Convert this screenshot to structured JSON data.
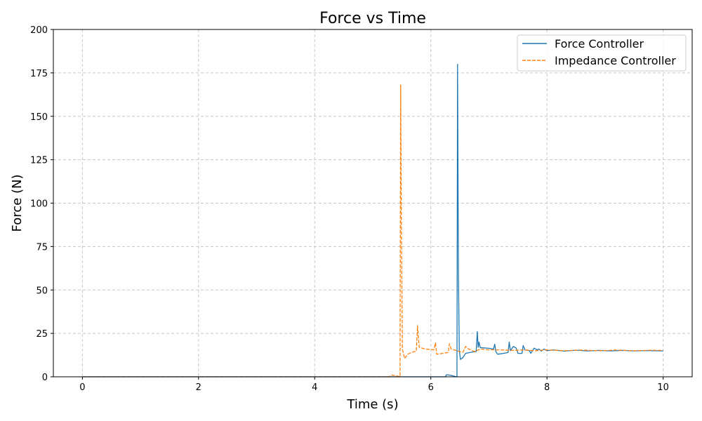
{
  "chart_data": {
    "type": "line",
    "title": "Force vs Time",
    "xlabel": "Time (s)",
    "ylabel": "Force (N)",
    "xlim": [
      -0.5,
      10.5
    ],
    "ylim": [
      0,
      200
    ],
    "xticks": [
      0,
      2,
      4,
      6,
      8,
      10
    ],
    "yticks": [
      0,
      25,
      50,
      75,
      100,
      125,
      150,
      175,
      200
    ],
    "grid": true,
    "legend_position": "top-right",
    "series": [
      {
        "name": "Force Controller",
        "color": "#1f77b4",
        "dash": "solid",
        "points": [
          [
            0,
            0
          ],
          [
            6.25,
            0
          ],
          [
            6.27,
            1.2
          ],
          [
            6.35,
            0.8
          ],
          [
            6.44,
            0
          ],
          [
            6.45,
            0
          ],
          [
            6.46,
            180
          ],
          [
            6.475,
            60
          ],
          [
            6.49,
            15
          ],
          [
            6.51,
            10
          ],
          [
            6.55,
            11
          ],
          [
            6.6,
            13.5
          ],
          [
            6.7,
            14.2
          ],
          [
            6.78,
            14.5
          ],
          [
            6.8,
            26
          ],
          [
            6.815,
            17
          ],
          [
            6.83,
            20
          ],
          [
            6.85,
            16.8
          ],
          [
            7.0,
            16.4
          ],
          [
            7.08,
            16
          ],
          [
            7.1,
            18.8
          ],
          [
            7.12,
            14.5
          ],
          [
            7.15,
            13
          ],
          [
            7.25,
            13.5
          ],
          [
            7.33,
            14
          ],
          [
            7.35,
            20
          ],
          [
            7.37,
            15
          ],
          [
            7.42,
            17.5
          ],
          [
            7.47,
            16.5
          ],
          [
            7.5,
            13.5
          ],
          [
            7.57,
            13.5
          ],
          [
            7.59,
            18
          ],
          [
            7.62,
            15.5
          ],
          [
            7.7,
            15
          ],
          [
            7.72,
            13.5
          ],
          [
            7.78,
            16.5
          ],
          [
            7.83,
            15.5
          ],
          [
            7.86,
            16
          ],
          [
            7.9,
            14.8
          ],
          [
            7.95,
            16
          ],
          [
            8.0,
            15
          ],
          [
            8.1,
            15.5
          ],
          [
            8.3,
            14.8
          ],
          [
            8.5,
            15.3
          ],
          [
            8.7,
            14.9
          ],
          [
            8.9,
            15.2
          ],
          [
            9.1,
            14.9
          ],
          [
            9.3,
            15.2
          ],
          [
            9.5,
            14.9
          ],
          [
            9.7,
            15.1
          ],
          [
            10.0,
            14.9
          ]
        ]
      },
      {
        "name": "Impedance Controller",
        "color": "#ff7f0e",
        "dash": "dashed",
        "points": [
          [
            0,
            0
          ],
          [
            5.28,
            0
          ],
          [
            5.32,
            1.0
          ],
          [
            5.4,
            0.6
          ],
          [
            5.45,
            0.2
          ],
          [
            5.47,
            0
          ],
          [
            5.48,
            168
          ],
          [
            5.495,
            80
          ],
          [
            5.51,
            16
          ],
          [
            5.55,
            10.5
          ],
          [
            5.6,
            13
          ],
          [
            5.68,
            14.2
          ],
          [
            5.75,
            14.8
          ],
          [
            5.77,
            29.5
          ],
          [
            5.8,
            17
          ],
          [
            5.9,
            16
          ],
          [
            6.05,
            15.5
          ],
          [
            6.08,
            19.5
          ],
          [
            6.1,
            13
          ],
          [
            6.2,
            13.5
          ],
          [
            6.3,
            14
          ],
          [
            6.32,
            19
          ],
          [
            6.35,
            16
          ],
          [
            6.45,
            15
          ],
          [
            6.55,
            14
          ],
          [
            6.6,
            17.5
          ],
          [
            6.65,
            16
          ],
          [
            6.75,
            14.5
          ],
          [
            6.85,
            16
          ],
          [
            7.0,
            15.5
          ],
          [
            7.2,
            15.5
          ],
          [
            7.4,
            15.2
          ],
          [
            7.6,
            15.5
          ],
          [
            7.8,
            15
          ],
          [
            8.0,
            15.5
          ],
          [
            8.3,
            15
          ],
          [
            8.6,
            15.4
          ],
          [
            8.9,
            15
          ],
          [
            9.2,
            15.4
          ],
          [
            9.5,
            15
          ],
          [
            9.8,
            15.3
          ],
          [
            10.0,
            15.2
          ]
        ]
      }
    ]
  }
}
